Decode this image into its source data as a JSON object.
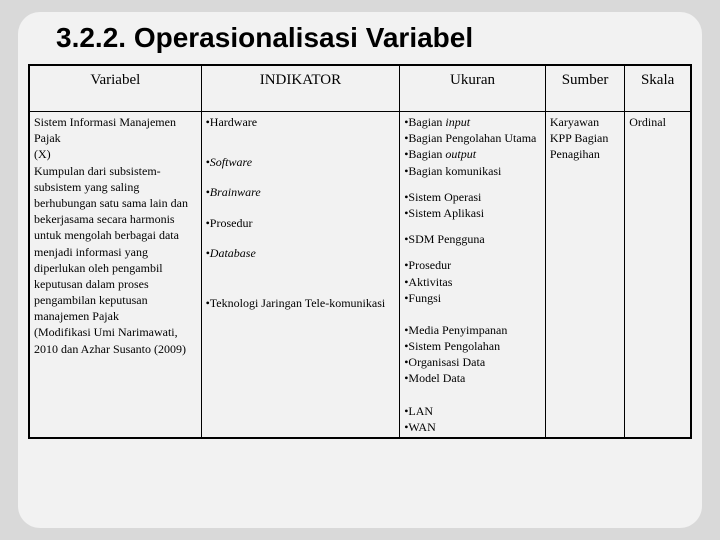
{
  "title": "3.2.2. Operasionalisasi Variabel",
  "headers": {
    "variabel": "Variabel",
    "indikator": "INDIKATOR",
    "ukuran": "Ukuran",
    "sumber": "Sumber",
    "skala": "Skala"
  },
  "row": {
    "variabel": {
      "line1": "Sistem Informasi Manajemen Pajak",
      "line2": "(X)",
      "desc": "Kumpulan dari subsistem-subsistem yang saling berhubungan satu sama lain dan bekerjasama secara harmonis untuk mengolah berbagai data menjadi informasi  yang diperlukan oleh pengambil keputusan dalam proses pengambilan keputusan manajemen Pajak",
      "source": "(Modifikasi Umi Narimawati, 2010 dan Azhar Susanto (2009)"
    },
    "indikator": [
      {
        "text": "•Hardware",
        "italic": false
      },
      {
        "text": "•Software",
        "italic": true
      },
      {
        "text": "•Brainware",
        "italic": true
      },
      {
        "text": "•Prosedur",
        "italic": false
      },
      {
        "text": "•Database",
        "italic": true
      },
      {
        "text": "•Teknologi Jaringan Tele-komunikasi",
        "italic": false
      }
    ],
    "ukuran": [
      [
        "•Bagian input",
        "•Bagian Pengolahan Utama",
        "•Bagian output",
        "•Bagian komunikasi"
      ],
      [
        "•Sistem Operasi",
        "•Sistem Aplikasi"
      ],
      [
        "•SDM Pengguna"
      ],
      [
        "•Prosedur",
        "•Aktivitas",
        "•Fungsi"
      ],
      [
        "•Media Penyimpanan",
        "•Sistem Pengolahan",
        "•Organisasi Data",
        "•Model Data"
      ],
      [
        "•LAN",
        "•WAN"
      ]
    ],
    "ukuranItalic": {
      "0": {
        "0": true,
        "2": true
      }
    },
    "sumber": "Karyawan KPP Bagian Penagihan",
    "skala": "Ordinal"
  },
  "style": {
    "page_bg": "#d9d9d9",
    "slide_bg": "#f2f2f2",
    "border_color": "#000000",
    "title_fontsize": 28,
    "header_fontsize": 15,
    "body_fontsize": 12
  }
}
